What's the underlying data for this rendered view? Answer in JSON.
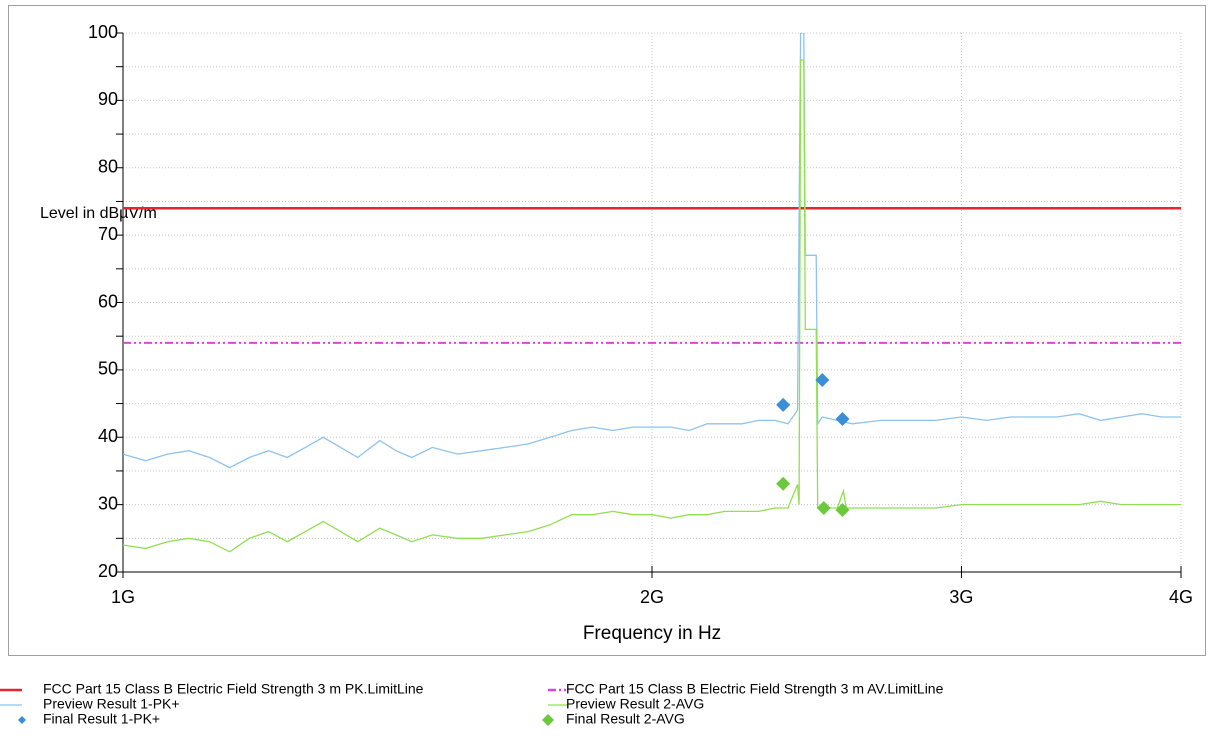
{
  "chart_data": {
    "type": "line",
    "xlabel": "Frequency in Hz",
    "ylabel": "Level in dBµV/m",
    "xscale": "log",
    "xlim": [
      1000000000.0,
      4000000000.0
    ],
    "xticks": [
      {
        "value": 1000000000.0,
        "label": "1G"
      },
      {
        "value": 2000000000.0,
        "label": "2G"
      },
      {
        "value": 3000000000.0,
        "label": "3G"
      },
      {
        "value": 4000000000.0,
        "label": "4G"
      }
    ],
    "ylim": [
      20,
      100
    ],
    "yticks": [
      20,
      30,
      40,
      50,
      60,
      70,
      80,
      90,
      100
    ],
    "yminor_ticks": [
      25,
      35,
      45,
      55,
      65,
      75,
      85,
      95
    ],
    "grid": true,
    "legend": "bottom",
    "series": [
      {
        "name": "FCC Part 15 Class B Electric Field Strength 3 m PK.LimitLine",
        "color": "#e8262b",
        "style": "line",
        "x": [
          1000000000.0,
          4000000000.0
        ],
        "values": [
          74,
          74
        ]
      },
      {
        "name": "FCC Part 15 Class B Electric Field Strength 3 m AV.LimitLine",
        "color": "#e040e0",
        "style": "dashdot",
        "x": [
          1000000000.0,
          4000000000.0
        ],
        "values": [
          54,
          54
        ]
      },
      {
        "name": "Preview Result 1-PK+",
        "color": "#8ec3ef",
        "style": "line",
        "x": [
          1000000000.0,
          1030000000.0,
          1060000000.0,
          1090000000.0,
          1120000000.0,
          1150000000.0,
          1180000000.0,
          1210000000.0,
          1240000000.0,
          1270000000.0,
          1300000000.0,
          1330000000.0,
          1360000000.0,
          1400000000.0,
          1430000000.0,
          1460000000.0,
          1500000000.0,
          1550000000.0,
          1600000000.0,
          1650000000.0,
          1700000000.0,
          1750000000.0,
          1800000000.0,
          1850000000.0,
          1900000000.0,
          1950000000.0,
          2000000000.0,
          2050000000.0,
          2100000000.0,
          2150000000.0,
          2200000000.0,
          2250000000.0,
          2300000000.0,
          2350000000.0,
          2390000000.0,
          2420000000.0,
          2430000000.0,
          2440000000.0,
          2445000000.0,
          2470000000.0,
          2480000000.0,
          2485000000.0,
          2500000000.0,
          2550000000.0,
          2600000000.0,
          2700000000.0,
          2800000000.0,
          2900000000.0,
          3000000000.0,
          3100000000.0,
          3200000000.0,
          3300000000.0,
          3400000000.0,
          3500000000.0,
          3600000000.0,
          3700000000.0,
          3800000000.0,
          3900000000.0,
          4000000000.0
        ],
        "values": [
          37.5,
          36.5,
          37.5,
          38,
          37,
          35.5,
          37,
          38,
          37,
          38.5,
          40,
          38.5,
          37,
          39.5,
          38,
          37,
          38.5,
          37.5,
          38,
          38.5,
          39,
          40,
          41,
          41.5,
          41,
          41.5,
          41.5,
          41.5,
          41,
          42,
          42,
          42,
          42.5,
          42.5,
          42,
          44,
          100,
          100,
          67,
          67,
          67,
          42,
          43,
          42.5,
          42,
          42.5,
          42.5,
          42.5,
          43,
          42.5,
          43,
          43,
          43,
          43.5,
          42.5,
          43,
          43.5,
          43,
          43
        ]
      },
      {
        "name": "Preview Result 2-AVG",
        "color": "#90e050",
        "style": "line",
        "x": [
          1000000000.0,
          1030000000.0,
          1060000000.0,
          1090000000.0,
          1120000000.0,
          1150000000.0,
          1180000000.0,
          1210000000.0,
          1240000000.0,
          1270000000.0,
          1300000000.0,
          1330000000.0,
          1360000000.0,
          1400000000.0,
          1430000000.0,
          1460000000.0,
          1500000000.0,
          1550000000.0,
          1600000000.0,
          1650000000.0,
          1700000000.0,
          1750000000.0,
          1800000000.0,
          1850000000.0,
          1900000000.0,
          1950000000.0,
          2000000000.0,
          2050000000.0,
          2100000000.0,
          2150000000.0,
          2200000000.0,
          2250000000.0,
          2300000000.0,
          2350000000.0,
          2390000000.0,
          2420000000.0,
          2425000000.0,
          2430000000.0,
          2440000000.0,
          2445000000.0,
          2470000000.0,
          2480000000.0,
          2485000000.0,
          2500000000.0,
          2550000000.0,
          2570000000.0,
          2580000000.0,
          2700000000.0,
          2800000000.0,
          2900000000.0,
          3000000000.0,
          3100000000.0,
          3200000000.0,
          3300000000.0,
          3400000000.0,
          3500000000.0,
          3600000000.0,
          3700000000.0,
          3800000000.0,
          3900000000.0,
          4000000000.0
        ],
        "values": [
          24,
          23.5,
          24.5,
          25,
          24.5,
          23,
          25,
          26,
          24.5,
          26,
          27.5,
          26,
          24.5,
          26.5,
          25.5,
          24.5,
          25.5,
          25,
          25,
          25.5,
          26,
          27,
          28.5,
          28.5,
          29,
          28.5,
          28.5,
          28,
          28.5,
          28.5,
          29,
          29,
          29,
          29.5,
          29.5,
          33,
          30,
          96,
          96,
          56,
          56,
          56,
          29.5,
          29.5,
          29.5,
          32,
          29.5,
          29.5,
          29.5,
          29.5,
          30,
          30,
          30,
          30,
          30,
          30,
          30.5,
          30,
          30,
          30,
          30
        ]
      },
      {
        "name": "Final Result 1-PK+",
        "color": "#3a8fd8",
        "style": "marker",
        "x": [
          2375000000.0,
          2500000000.0,
          2567000000.0
        ],
        "values": [
          44.8,
          48.5,
          42.7
        ]
      },
      {
        "name": "Final Result 2-AVG",
        "color": "#6cc83c",
        "style": "marker",
        "x": [
          2375000000.0,
          2505000000.0,
          2567000000.0
        ],
        "values": [
          33.1,
          29.5,
          29.2
        ]
      }
    ]
  }
}
